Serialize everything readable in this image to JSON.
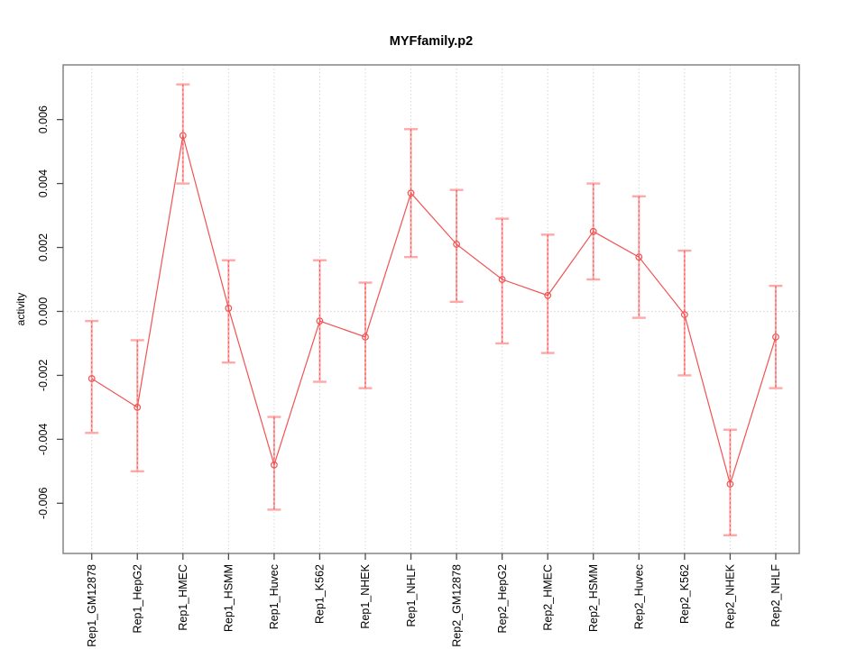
{
  "chart_data": {
    "type": "line",
    "title": "MYFfamily.p2",
    "xlabel": "",
    "ylabel": "activity",
    "legend_position": "none",
    "grid": {
      "vertical_gridlines": true,
      "horizontal_zero_line": true
    },
    "categories": [
      "Rep1_GM12878",
      "Rep1_HepG2",
      "Rep1_HMEC",
      "Rep1_HSMM",
      "Rep1_Huvec",
      "Rep1_K562",
      "Rep1_NHEK",
      "Rep1_NHLF",
      "Rep2_GM12878",
      "Rep2_HepG2",
      "Rep2_HMEC",
      "Rep2_HSMM",
      "Rep2_Huvec",
      "Rep2_K562",
      "Rep2_NHEK",
      "Rep2_NHLF"
    ],
    "series": [
      {
        "name": "activity",
        "values": [
          -0.0021,
          -0.003,
          0.0055,
          0.0001,
          -0.0048,
          -0.0003,
          -0.0008,
          0.0037,
          0.0021,
          0.001,
          0.0005,
          0.0025,
          0.0017,
          -0.0001,
          -0.0054,
          -0.0008
        ],
        "error_lower": [
          -0.0038,
          -0.005,
          0.004,
          -0.0016,
          -0.0062,
          -0.0022,
          -0.0024,
          0.0017,
          0.0003,
          -0.001,
          -0.0013,
          0.001,
          -0.0002,
          -0.002,
          -0.007,
          -0.0024
        ],
        "error_upper": [
          -0.0003,
          -0.0009,
          0.0071,
          0.0016,
          -0.0033,
          0.0016,
          0.0009,
          0.0057,
          0.0038,
          0.0029,
          0.0024,
          0.004,
          0.0036,
          0.0019,
          -0.0037,
          0.0008
        ]
      }
    ],
    "ylim": [
      -0.00757,
      0.00771
    ],
    "yticks": [
      -0.006,
      -0.004,
      -0.002,
      0,
      0.002,
      0.004,
      0.006
    ],
    "ytick_labels": [
      "-0.006",
      "-0.004",
      "-0.002",
      "0.000",
      "0.002",
      "0.004",
      "0.006"
    ],
    "colors": {
      "line": "#f05353",
      "point": "#f05353",
      "error_bar": "#ffa8a8",
      "error_dash": "#f05353",
      "gridline": "#d7d7d7",
      "zero_line": "#d7d7d7",
      "plot_border": "#8c8c8c",
      "tick_mark": "#4d4d4d",
      "text": "#000000",
      "background": "#ffffff"
    }
  }
}
